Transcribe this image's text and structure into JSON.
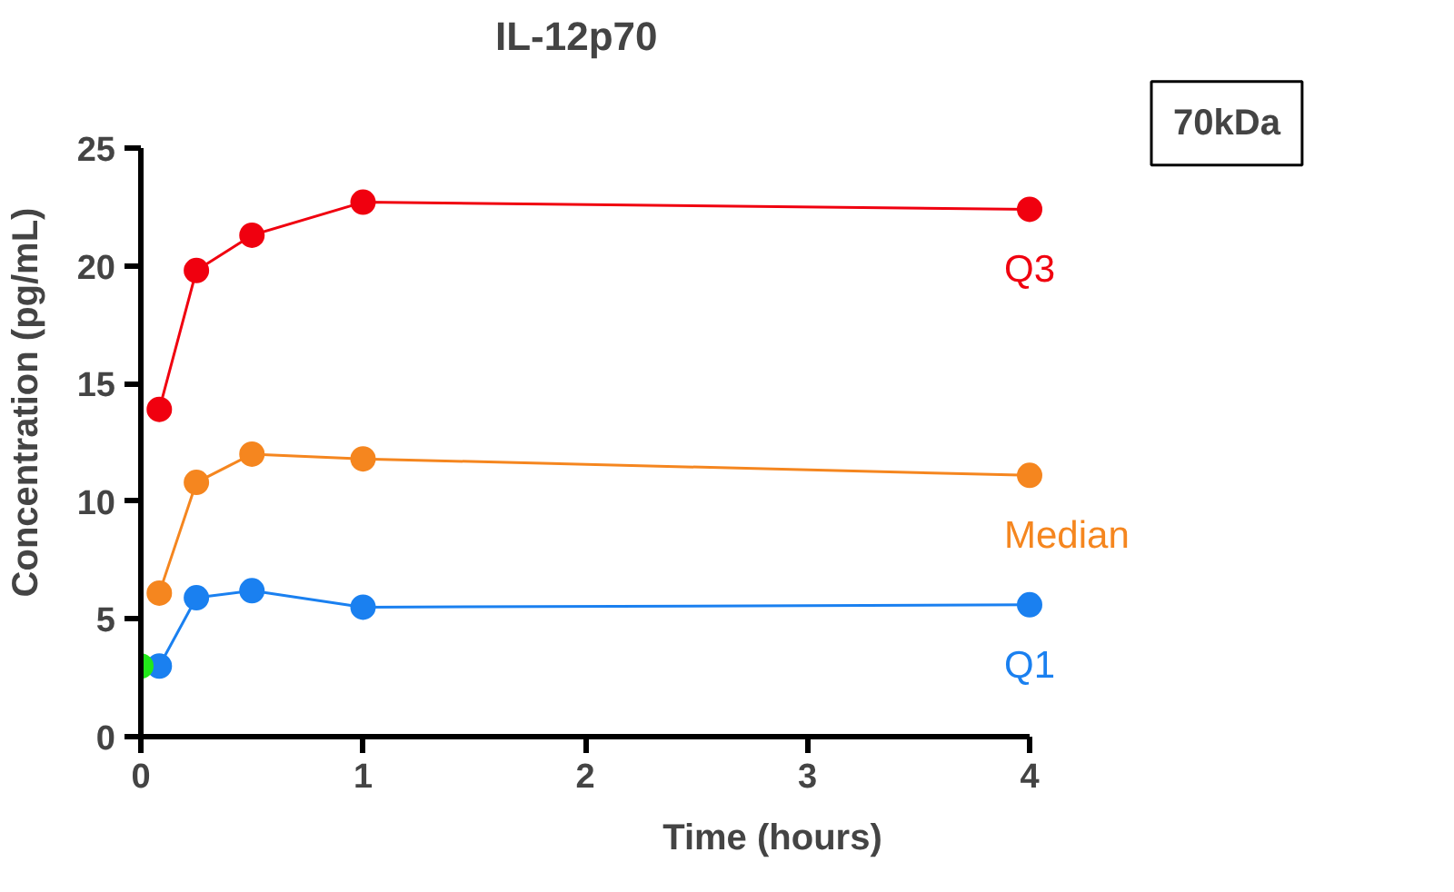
{
  "chart_data": {
    "type": "line",
    "title": "IL-12p70",
    "xlabel": "Time (hours)",
    "ylabel": "Concentration (pg/mL)",
    "annotations": [
      "70kDa"
    ],
    "xlim": [
      0,
      4
    ],
    "xticks": [
      0,
      1,
      2,
      3,
      4
    ],
    "ylim": [
      0,
      25
    ],
    "yticks": [
      0,
      5,
      10,
      15,
      20,
      25
    ],
    "grid": false,
    "legend": false,
    "marker": "circle",
    "line_style": "solid",
    "series": [
      {
        "name": "Q3",
        "color": "#f0000f",
        "x": [
          0.083,
          0.25,
          0.5,
          1,
          4
        ],
        "values": [
          13.9,
          19.8,
          21.3,
          22.7,
          22.4
        ]
      },
      {
        "name": "Median",
        "color": "#f5861f",
        "x": [
          0.083,
          0.25,
          0.5,
          1,
          4
        ],
        "values": [
          6.1,
          10.8,
          12.0,
          11.8,
          11.1
        ]
      },
      {
        "name": "Q1",
        "color": "#1a80f0",
        "x": [
          0.083,
          0.25,
          0.5,
          1,
          4
        ],
        "values": [
          3.0,
          5.9,
          6.2,
          5.5,
          5.6
        ]
      },
      {
        "type": "scatter",
        "color": "#22e81a",
        "x": [
          0
        ],
        "values": [
          3.0
        ]
      }
    ]
  }
}
